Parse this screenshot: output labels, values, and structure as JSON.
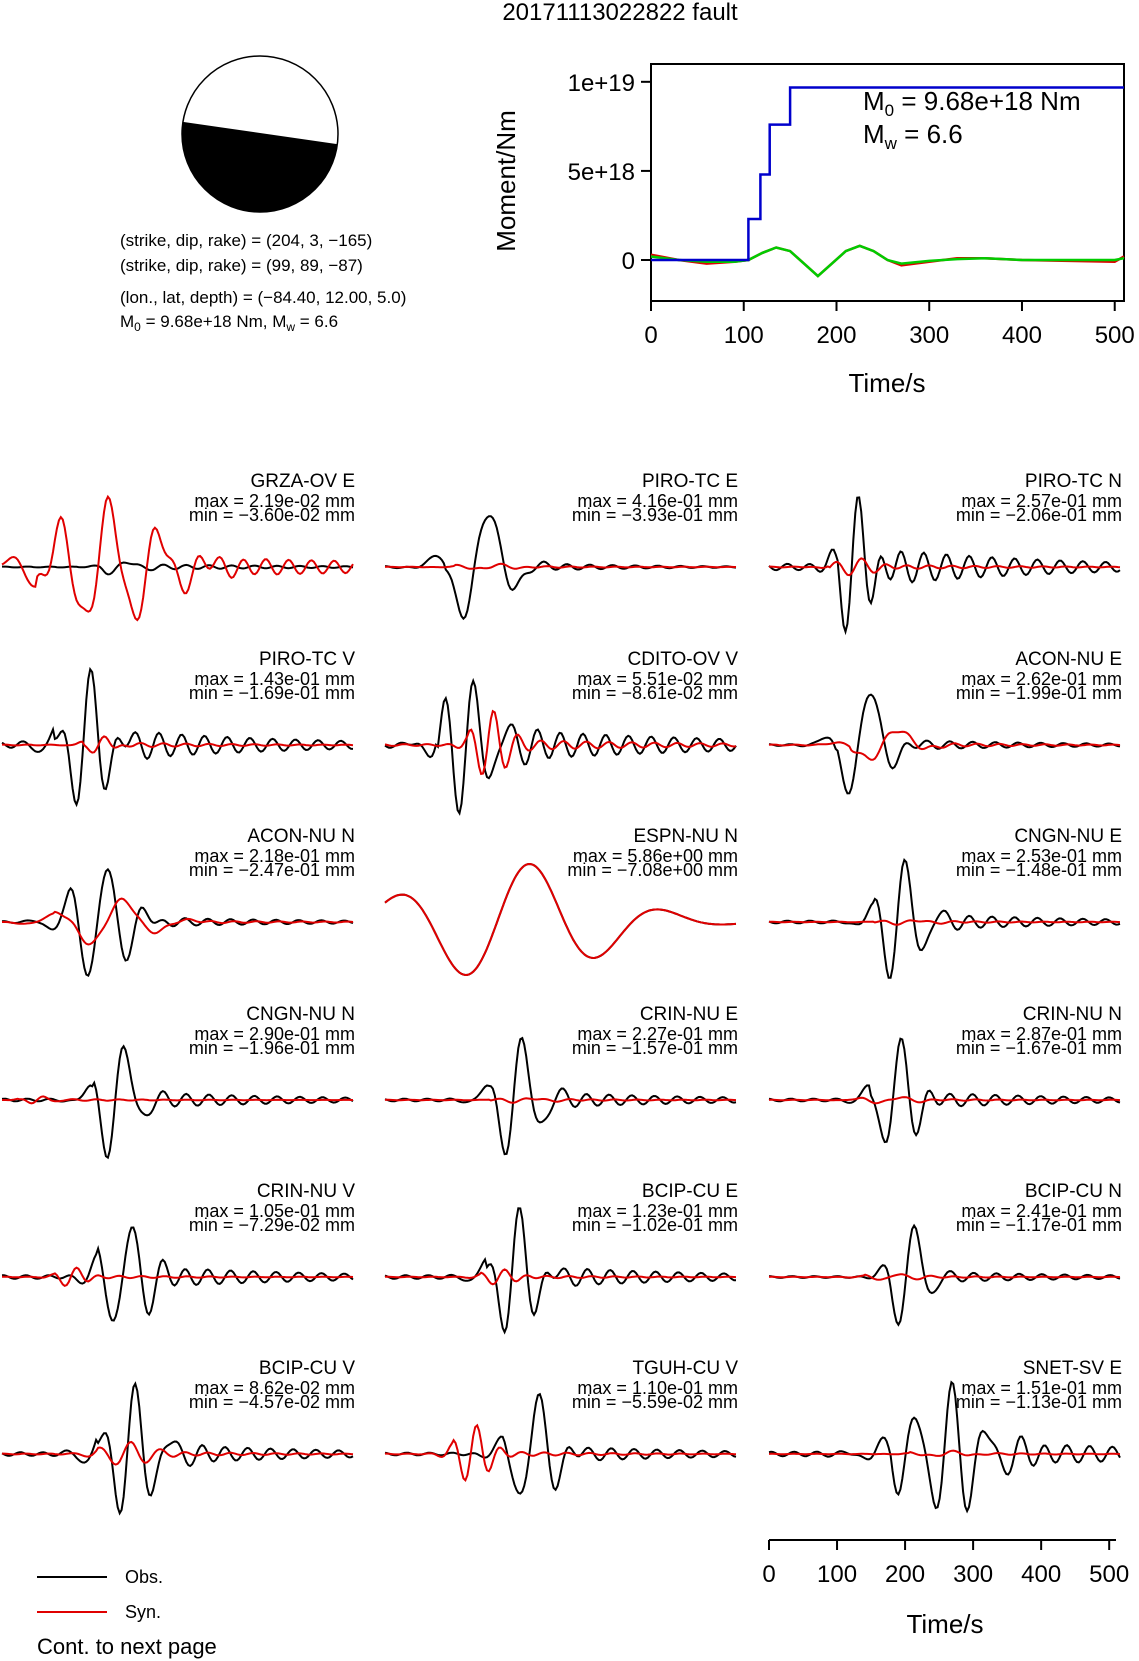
{
  "page_title": "20171113022822 fault",
  "mechanism": {
    "plane1": "(strike, dip, rake) = (204, 3, −165)",
    "plane2": "(strike, dip, rake) = (99, 89, −87)",
    "location": "(lon., lat, depth) = (−84.40, 12.00, 5.0)",
    "moment_line": {
      "m0_prefix": "M",
      "m0_sub": "0",
      "m0_text": " = 9.68e+18 Nm, M",
      "mw_sub": "w",
      "mw_text": " = 6.6"
    }
  },
  "colors": {
    "obs": "#000000",
    "syn": "#e00000",
    "moment": "#0000cc",
    "stf_green": "#00cc00"
  },
  "moment_plot": {
    "ylabel": "Moment/Nm",
    "xlabel": "Time/s",
    "ytick_labels": [
      "0",
      "5e+18",
      "1e+19"
    ],
    "xtick_labels": [
      "0",
      "100",
      "200",
      "300",
      "400",
      "500"
    ],
    "m0_annotation": {
      "prefix": "M",
      "sub": "0",
      "text": " = 9.68e+18 Nm"
    },
    "mw_annotation": {
      "prefix": "M",
      "sub": "w",
      "text": " = 6.6"
    }
  },
  "time_axis": {
    "xlabel": "Time/s",
    "tick_labels": [
      "0",
      "100",
      "200",
      "300",
      "400",
      "500"
    ]
  },
  "legend": {
    "obs": "Obs.",
    "syn": "Syn."
  },
  "footer": "Cont. to next page",
  "chart_data": [
    {
      "type": "line",
      "title": "",
      "xlabel": "Time/s",
      "ylabel": "Moment/Nm",
      "xlim": [
        0,
        510
      ],
      "ylim": [
        -2.3e+18,
        1.1e+19
      ],
      "series": [
        {
          "color": "#0000cc",
          "x": [
            0,
            105,
            105,
            118,
            118,
            128,
            128,
            150,
            150,
            510
          ],
          "y": [
            0,
            0,
            2.3e+18,
            2.3e+18,
            4.8e+18,
            4.8e+18,
            7.6e+18,
            7.6e+18,
            9.68e+18,
            9.68e+18
          ]
        },
        {
          "color": "#e00000",
          "x": [
            0,
            30,
            60,
            90,
            105,
            120,
            135,
            150,
            165,
            180,
            195,
            210,
            225,
            240,
            255,
            270,
            300,
            330,
            360,
            400,
            450,
            500,
            510
          ],
          "y": [
            3e+17,
            0,
            -2e+17,
            -1e+17,
            0,
            4e+17,
            7e+17,
            5e+17,
            -2e+17,
            -9e+17,
            -2e+17,
            5e+17,
            8e+17,
            5e+17,
            0,
            -3e+17,
            -1e+17,
            1e+17,
            1e+17,
            0,
            -5e+16,
            -1e+17,
            2e+17
          ]
        },
        {
          "color": "#00cc00",
          "x": [
            0,
            30,
            60,
            90,
            105,
            120,
            135,
            150,
            165,
            180,
            195,
            210,
            225,
            240,
            255,
            270,
            300,
            330,
            360,
            400,
            450,
            500,
            510
          ],
          "y": [
            2e+17,
            0,
            -1e+17,
            -1e+17,
            0,
            4e+17,
            7e+17,
            5e+17,
            -2e+17,
            -9e+17,
            -2e+17,
            5e+17,
            8e+17,
            5e+17,
            0,
            -2e+17,
            -5e+16,
            5e+16,
            1e+17,
            0,
            0,
            0,
            1e+17
          ]
        }
      ]
    },
    {
      "type": "line",
      "xlabel": "Time/s",
      "xlim": [
        0,
        510
      ],
      "panels": [
        {
          "station": "GRZA-OV E",
          "max": "max = 2.19e-02 mm",
          "min": "min = −3.60e-02 mm"
        },
        {
          "station": "PIRO-TC E",
          "max": "max = 4.16e-01 mm",
          "min": "min = −3.93e-01 mm"
        },
        {
          "station": "PIRO-TC N",
          "max": "max = 2.57e-01 mm",
          "min": "min = −2.06e-01 mm"
        },
        {
          "station": "PIRO-TC V",
          "max": "max = 1.43e-01 mm",
          "min": "min = −1.69e-01 mm"
        },
        {
          "station": "CDITO-OV V",
          "max": "max = 5.51e-02 mm",
          "min": "min = −8.61e-02 mm"
        },
        {
          "station": "ACON-NU E",
          "max": "max = 2.62e-01 mm",
          "min": "min = −1.99e-01 mm"
        },
        {
          "station": "ACON-NU N",
          "max": "max = 2.18e-01 mm",
          "min": "min = −2.47e-01 mm"
        },
        {
          "station": "ESPN-NU N",
          "max": "max = 5.86e+00 mm",
          "min": "min = −7.08e+00 mm"
        },
        {
          "station": "CNGN-NU E",
          "max": "max = 2.53e-01 mm",
          "min": "min = −1.48e-01 mm"
        },
        {
          "station": "CNGN-NU N",
          "max": "max = 2.90e-01 mm",
          "min": "min = −1.96e-01 mm"
        },
        {
          "station": "CRIN-NU E",
          "max": "max = 2.27e-01 mm",
          "min": "min = −1.57e-01 mm"
        },
        {
          "station": "CRIN-NU N",
          "max": "max = 2.87e-01 mm",
          "min": "min = −1.67e-01 mm"
        },
        {
          "station": "CRIN-NU V",
          "max": "max = 1.05e-01 mm",
          "min": "min = −7.29e-02 mm"
        },
        {
          "station": "BCIP-CU E",
          "max": "max = 1.23e-01 mm",
          "min": "min = −1.02e-01 mm"
        },
        {
          "station": "BCIP-CU N",
          "max": "max = 2.41e-01 mm",
          "min": "min = −1.17e-01 mm"
        },
        {
          "station": "BCIP-CU V",
          "max": "max = 8.62e-02 mm",
          "min": "min = −4.57e-02 mm"
        },
        {
          "station": "TGUH-CU V",
          "max": "max = 1.10e-01 mm",
          "min": "min = −5.59e-02 mm"
        },
        {
          "station": "SNET-SV E",
          "max": "max = 1.51e-01 mm",
          "min": "min = −1.13e-01 mm"
        }
      ]
    }
  ]
}
